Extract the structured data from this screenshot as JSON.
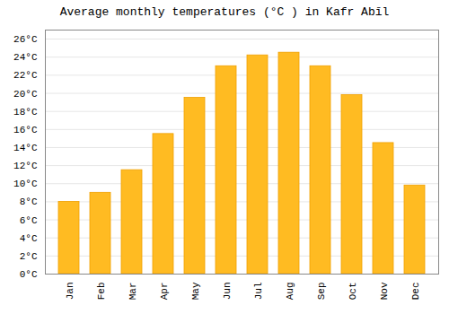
{
  "chart_data": {
    "type": "bar",
    "title": "Average monthly temperatures (°C ) in Kafr Abīl",
    "categories": [
      "Jan",
      "Feb",
      "Mar",
      "Apr",
      "May",
      "Jun",
      "Jul",
      "Aug",
      "Sep",
      "Oct",
      "Nov",
      "Dec"
    ],
    "values": [
      8.0,
      9.0,
      11.5,
      15.5,
      19.5,
      23.0,
      24.2,
      24.5,
      23.0,
      19.8,
      14.5,
      9.8
    ],
    "color": "#FFBB22",
    "ylim": [
      0,
      27
    ],
    "yticks": [
      {
        "value": 0,
        "label": "0°C"
      },
      {
        "value": 2,
        "label": "2°C"
      },
      {
        "value": 4,
        "label": "4°C"
      },
      {
        "value": 6,
        "label": "6°C"
      },
      {
        "value": 8,
        "label": "8°C"
      },
      {
        "value": 10,
        "label": "10°C"
      },
      {
        "value": 12,
        "label": "12°C"
      },
      {
        "value": 14,
        "label": "14°C"
      },
      {
        "value": 16,
        "label": "16°C"
      },
      {
        "value": 18,
        "label": "18°C"
      },
      {
        "value": 20,
        "label": "20°C"
      },
      {
        "value": 22,
        "label": "22°C"
      },
      {
        "value": 24,
        "label": "24°C"
      },
      {
        "value": 26,
        "label": "26°C"
      }
    ],
    "grid": true
  }
}
